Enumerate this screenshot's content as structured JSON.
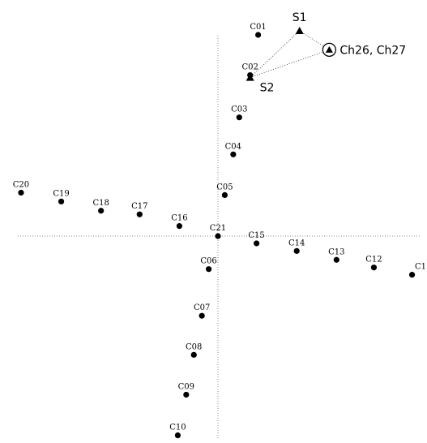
{
  "chart_data": {
    "type": "scatter",
    "title": "",
    "xlabel": "",
    "ylabel": "",
    "xlim": [
      -5.0,
      5.0
    ],
    "ylim": [
      -5.0,
      5.0
    ],
    "grid": false,
    "series": [
      {
        "marker": "circle",
        "points": [
          {
            "label": "C01",
            "x": 1.0,
            "y": 5.0
          },
          {
            "label": "C02",
            "x": 0.8,
            "y": 4.0
          },
          {
            "label": "C03",
            "x": 0.53,
            "y": 2.95
          },
          {
            "label": "C04",
            "x": 0.38,
            "y": 2.03
          },
          {
            "label": "C05",
            "x": 0.17,
            "y": 1.02
          },
          {
            "label": "C21",
            "x": 0.0,
            "y": 0.0
          },
          {
            "label": "C06",
            "x": -0.23,
            "y": -0.82
          },
          {
            "label": "C07",
            "x": -0.4,
            "y": -1.98
          },
          {
            "label": "C08",
            "x": -0.6,
            "y": -2.95
          },
          {
            "label": "C09",
            "x": -0.79,
            "y": -3.94
          },
          {
            "label": "C10",
            "x": -1.0,
            "y": -4.95
          },
          {
            "label": "C15",
            "x": 0.96,
            "y": -0.18
          },
          {
            "label": "C14",
            "x": 1.96,
            "y": -0.37
          },
          {
            "label": "C13",
            "x": 2.95,
            "y": -0.59
          },
          {
            "label": "C12",
            "x": 3.88,
            "y": -0.78
          },
          {
            "label": "C1",
            "x": 4.83,
            "y": -0.96
          },
          {
            "label": "C16",
            "x": -0.96,
            "y": 0.25
          },
          {
            "label": "C17",
            "x": -1.95,
            "y": 0.54
          },
          {
            "label": "C18",
            "x": -2.91,
            "y": 0.63
          },
          {
            "label": "C19",
            "x": -3.9,
            "y": 0.86
          },
          {
            "label": "C20",
            "x": -4.9,
            "y": 1.08
          }
        ]
      },
      {
        "marker": "triangle",
        "points": [
          {
            "label": "S1",
            "x": 2.03,
            "y": 5.1
          },
          {
            "label": "S2",
            "x": 0.8,
            "y": 3.94
          }
        ]
      },
      {
        "marker": "circled-triangle",
        "points": [
          {
            "label": "Ch26, Ch27",
            "x": 2.77,
            "y": 4.63
          }
        ]
      }
    ],
    "links": [
      [
        "S1",
        "Ch26, Ch27"
      ],
      [
        "S1",
        "S2"
      ],
      [
        "S2",
        "Ch26, Ch27"
      ]
    ]
  }
}
